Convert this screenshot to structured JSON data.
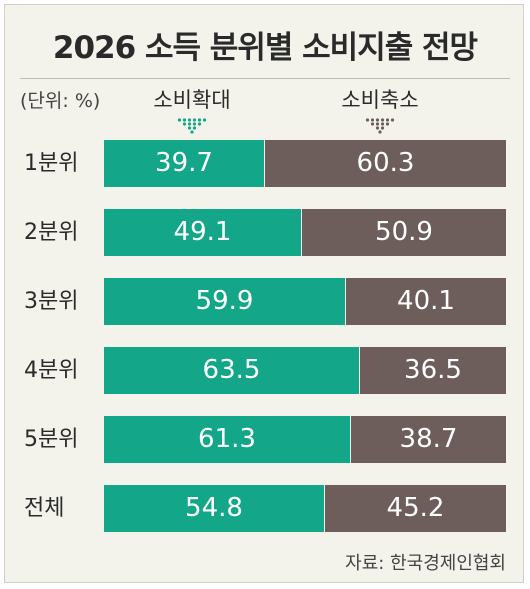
{
  "title": "2026 소득 분위별 소비지출 전망",
  "unit": "(단위: %)",
  "source": "자료: 한국경제인협회",
  "colors": {
    "expand": "#14a688",
    "shrink": "#6e5e5b"
  },
  "chart_data": {
    "type": "bar",
    "stacked": true,
    "orientation": "horizontal",
    "title": "2026 소득 분위별 소비지출 전망",
    "unit": "(단위: %)",
    "categories": [
      "1분위",
      "2분위",
      "3분위",
      "4분위",
      "5분위",
      "전체"
    ],
    "series": [
      {
        "name": "소비확대",
        "values": [
          39.7,
          49.1,
          59.9,
          63.5,
          61.3,
          54.8
        ]
      },
      {
        "name": "소비축소",
        "values": [
          60.3,
          50.9,
          40.1,
          36.5,
          38.7,
          45.2
        ]
      }
    ],
    "xlim": [
      0,
      100
    ],
    "grid": false,
    "legend": "top"
  }
}
